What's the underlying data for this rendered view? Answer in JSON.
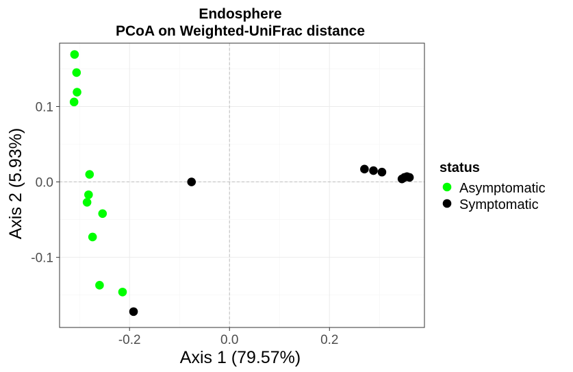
{
  "chart_data": {
    "type": "scatter",
    "title": "Endosphere",
    "subtitle": "PCoA on Weighted-UniFrac distance",
    "xlabel": "Axis 1 (79.57%)",
    "ylabel": "Axis 2 (5.93%)",
    "xlim": [
      -0.34,
      0.39
    ],
    "ylim": [
      -0.193,
      0.184
    ],
    "xticks": [
      -0.2,
      0.0,
      0.2
    ],
    "xtick_labels": [
      "-0.2",
      "0.0",
      "0.2"
    ],
    "yticks": [
      -0.1,
      0.0,
      0.1
    ],
    "ytick_labels": [
      "-0.1",
      "0.0",
      "0.1"
    ],
    "grid": true,
    "zero_lines": true,
    "legend": {
      "title": "status",
      "position": "right",
      "entries": [
        "Asymptomatic",
        "Symptomatic"
      ]
    },
    "series": [
      {
        "name": "Asymptomatic",
        "color": "#00ff00",
        "points": [
          [
            -0.31,
            0.169
          ],
          [
            -0.306,
            0.145
          ],
          [
            -0.305,
            0.119
          ],
          [
            -0.311,
            0.106
          ],
          [
            -0.28,
            0.01
          ],
          [
            -0.282,
            -0.017
          ],
          [
            -0.285,
            -0.027
          ],
          [
            -0.254,
            -0.042
          ],
          [
            -0.274,
            -0.073
          ],
          [
            -0.26,
            -0.137
          ],
          [
            -0.214,
            -0.146
          ]
        ]
      },
      {
        "name": "Symptomatic",
        "color": "#000000",
        "points": [
          [
            -0.076,
            0.0
          ],
          [
            -0.192,
            -0.172
          ],
          [
            0.27,
            0.017
          ],
          [
            0.288,
            0.015
          ],
          [
            0.305,
            0.013
          ],
          [
            0.345,
            0.004
          ],
          [
            0.35,
            0.006
          ],
          [
            0.355,
            0.007
          ],
          [
            0.36,
            0.006
          ]
        ]
      }
    ]
  }
}
